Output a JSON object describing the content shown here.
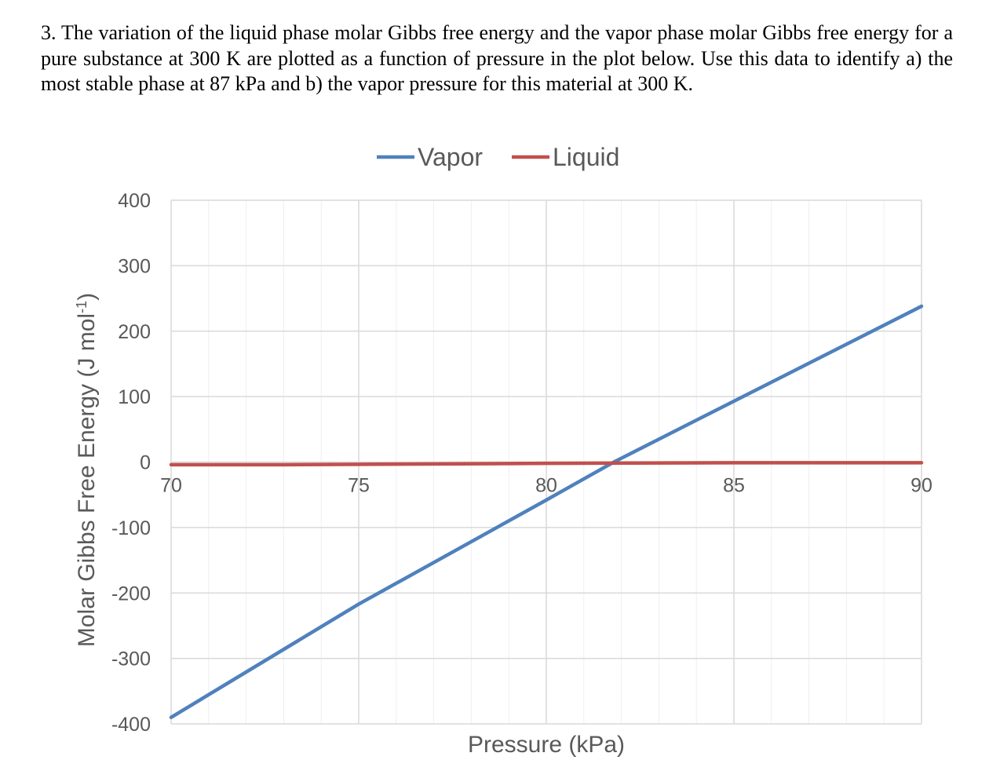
{
  "question_text": "3. The variation of the liquid phase molar Gibbs free energy and the vapor phase molar Gibbs free energy for a pure substance at 300 K are plotted as a function of pressure in the plot below. Use this data to identify a) the most stable phase at 87 kPa and b) the vapor pressure for this material at 300 K.",
  "chart_data": {
    "type": "line",
    "title": "",
    "xlabel": "Pressure (kPa)",
    "ylabel": "Molar Gibbs Free Energy (J mol⁻¹)",
    "xlim": [
      70,
      90
    ],
    "ylim": [
      -400,
      400
    ],
    "xticks": [
      70,
      75,
      80,
      85,
      90
    ],
    "yticks": [
      400,
      300,
      200,
      100,
      0,
      -100,
      -200,
      -300,
      -400
    ],
    "grid": true,
    "legend_position": "top",
    "series": [
      {
        "name": "Vapor",
        "color": "#4f81bd",
        "points": [
          [
            70,
            -390
          ],
          [
            75,
            -217
          ],
          [
            80,
            -58
          ],
          [
            81.8,
            0
          ],
          [
            85,
            93
          ],
          [
            90,
            238
          ]
        ]
      },
      {
        "name": "Liquid",
        "color": "#c0504d",
        "points": [
          [
            70,
            -4
          ],
          [
            73,
            -4
          ],
          [
            80,
            -2
          ],
          [
            85,
            -1
          ],
          [
            90,
            -1
          ]
        ]
      }
    ]
  }
}
